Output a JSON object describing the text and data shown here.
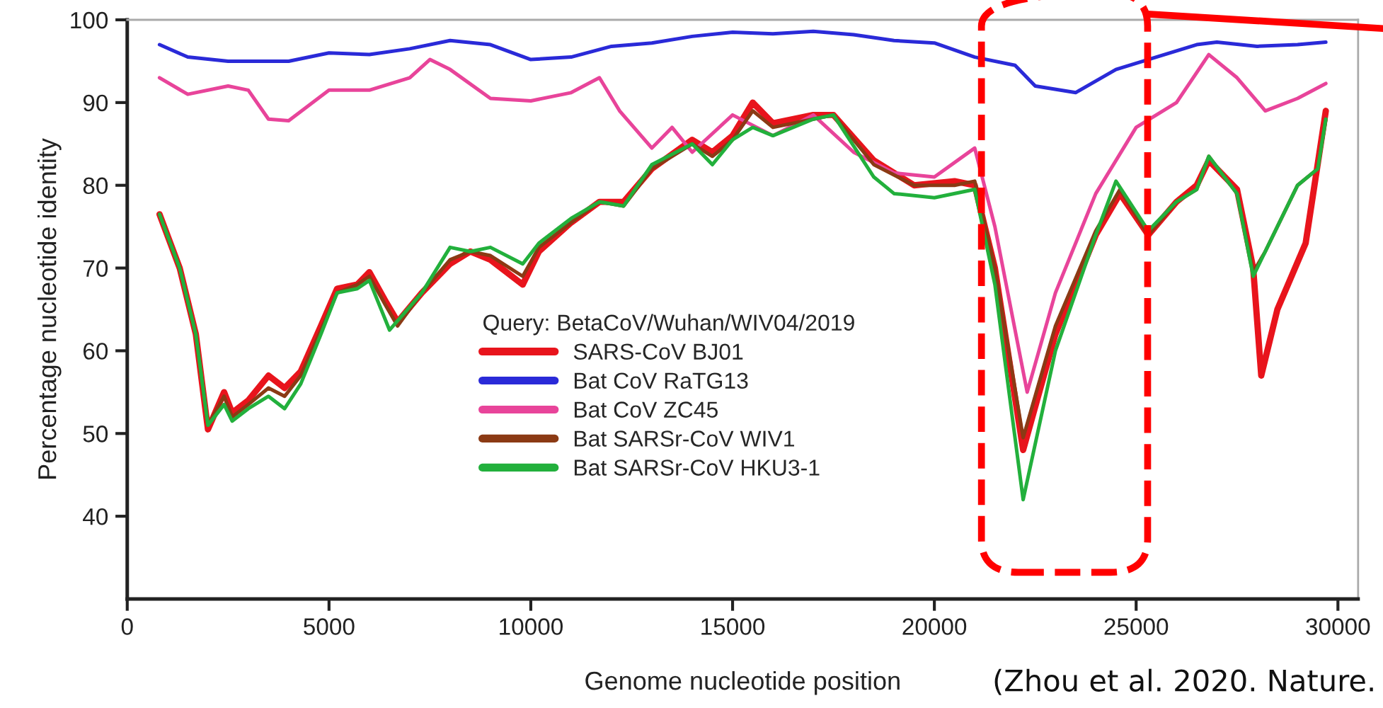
{
  "chart_data": {
    "type": "line",
    "xlabel": "Genome nucleotide position",
    "ylabel": "Percentage nucleotide identity",
    "legend_title": "Query: BetaCoV/Wuhan/WIV04/2019",
    "xlim": [
      0,
      30500
    ],
    "xticks": [
      0,
      5000,
      10000,
      15000,
      20000,
      25000,
      30000
    ],
    "ylim": [
      30,
      100
    ],
    "yticks": [
      40,
      50,
      60,
      70,
      80,
      90,
      100
    ],
    "grid": false,
    "legend": "bottom",
    "marker": "none",
    "line_style": "solid",
    "annotations": [
      "(Zhou et al. 2020. Nature."
    ],
    "series": [
      {
        "name": "SARS-CoV BJ01",
        "color": "#e8141c",
        "x": [
          800,
          1300,
          1700,
          2000,
          2400,
          2600,
          3000,
          3500,
          3900,
          4300,
          4800,
          5200,
          5700,
          6000,
          6400,
          6700,
          7300,
          8000,
          8500,
          9000,
          9800,
          10200,
          11000,
          11700,
          12300,
          13000,
          14000,
          14500,
          15000,
          15500,
          16000,
          17000,
          17500,
          18500,
          19500,
          20500,
          21000,
          21500,
          22200,
          23000,
          24000,
          24600,
          25300,
          26000,
          26500,
          26800,
          27500,
          27900,
          28100,
          28500,
          29200,
          29700
        ],
        "values": [
          76.5,
          70,
          62,
          50.5,
          55,
          52.5,
          54,
          57,
          55.5,
          57.5,
          63,
          67.5,
          68,
          69.5,
          66,
          63.5,
          67,
          70.5,
          72,
          71,
          68,
          72,
          75.5,
          78,
          78,
          82,
          85.5,
          84,
          86,
          90,
          87.5,
          88.5,
          88.5,
          83,
          80,
          80.5,
          80,
          70,
          48,
          62,
          74,
          79,
          74,
          78,
          80,
          83,
          79.5,
          70,
          57,
          65,
          73,
          89
        ]
      },
      {
        "name": "Bat CoV RaTG13",
        "color": "#2a2ad8",
        "x": [
          800,
          1500,
          2500,
          4000,
          5000,
          6000,
          7000,
          8000,
          9000,
          10000,
          11000,
          12000,
          13000,
          14000,
          15000,
          16000,
          17000,
          18000,
          19000,
          20000,
          21000,
          22000,
          22500,
          23500,
          24500,
          25500,
          26500,
          27000,
          28000,
          29000,
          29700
        ],
        "values": [
          97,
          95.5,
          95,
          95,
          96,
          95.8,
          96.5,
          97.5,
          97,
          95.2,
          95.5,
          96.8,
          97.2,
          98,
          98.5,
          98.3,
          98.6,
          98.2,
          97.5,
          97.2,
          95.5,
          94.5,
          92,
          91.2,
          94,
          95.5,
          97,
          97.3,
          96.8,
          97,
          97.3
        ]
      },
      {
        "name": "Bat CoV ZC45",
        "color": "#e8449a",
        "x": [
          800,
          1500,
          2500,
          3000,
          3500,
          4000,
          5000,
          6000,
          7000,
          7500,
          8000,
          9000,
          10000,
          11000,
          11700,
          12200,
          13000,
          13500,
          14000,
          15000,
          16000,
          17000,
          18000,
          19000,
          20000,
          21000,
          21500,
          22300,
          23000,
          24000,
          25000,
          26000,
          26800,
          27500,
          28200,
          29000,
          29700
        ],
        "values": [
          93,
          91,
          92,
          91.5,
          88,
          87.8,
          91.5,
          91.5,
          93,
          95.2,
          94,
          90.5,
          90.2,
          91.2,
          93,
          89,
          84.5,
          87,
          84,
          88.5,
          86,
          88.5,
          84,
          81.5,
          81,
          84.5,
          75,
          55,
          67,
          79,
          87,
          90,
          95.8,
          93,
          89,
          90.5,
          92.3
        ]
      },
      {
        "name": "Bat SARSr-CoV WIV1",
        "color": "#8b3a14",
        "x": [
          800,
          1300,
          1700,
          2000,
          2400,
          2600,
          3000,
          3500,
          3900,
          4300,
          4800,
          5200,
          5700,
          6000,
          6400,
          6700,
          7300,
          8000,
          8500,
          9000,
          9800,
          10200,
          11000,
          11700,
          12300,
          13000,
          14000,
          14500,
          15000,
          15500,
          16000,
          17000,
          17500,
          18500,
          19500,
          20500,
          21000,
          21500,
          22200,
          23000,
          24000,
          24600,
          25300,
          26000,
          26500,
          26800,
          27500,
          27900,
          28200,
          29000,
          29500,
          29700
        ],
        "values": [
          76.5,
          70,
          62,
          51,
          54.5,
          52,
          53.5,
          55.5,
          54.5,
          57,
          62.5,
          67,
          68,
          69,
          65.5,
          63,
          67,
          71,
          72,
          71.5,
          69,
          72.5,
          75.5,
          78,
          77.5,
          82,
          85,
          83.5,
          85.5,
          89,
          87,
          88,
          88.5,
          82.5,
          80,
          80,
          80.5,
          70,
          49.5,
          63,
          74.5,
          79.5,
          74,
          78,
          79.5,
          83.5,
          79,
          69.5,
          72,
          80,
          82,
          88
        ]
      },
      {
        "name": "Bat SARSr-CoV HKU3-1",
        "color": "#22b03c",
        "x": [
          800,
          1300,
          1700,
          2000,
          2400,
          2600,
          3000,
          3500,
          3900,
          4300,
          4800,
          5200,
          5700,
          6000,
          6500,
          7300,
          8000,
          8500,
          9000,
          9800,
          10200,
          11000,
          11700,
          12300,
          13000,
          14000,
          14500,
          15000,
          15500,
          16000,
          17000,
          17500,
          18500,
          19000,
          20000,
          21000,
          21500,
          22200,
          23000,
          24000,
          24500,
          25300,
          26000,
          26500,
          26800,
          27500,
          27900,
          28200,
          29000,
          29500,
          29700
        ],
        "values": [
          76.5,
          70,
          62,
          51,
          53.5,
          51.5,
          53,
          54.5,
          53,
          56,
          62,
          67,
          67.5,
          68.5,
          62.5,
          67,
          72.5,
          72,
          72.5,
          70.5,
          73,
          76,
          78,
          77.5,
          82.5,
          85,
          82.5,
          85.5,
          87,
          86,
          88,
          88.5,
          81,
          79,
          78.5,
          79.5,
          68,
          42,
          60,
          74,
          80.5,
          74.5,
          78,
          79.5,
          83.5,
          79,
          69,
          72,
          80,
          82,
          88
        ]
      }
    ]
  }
}
